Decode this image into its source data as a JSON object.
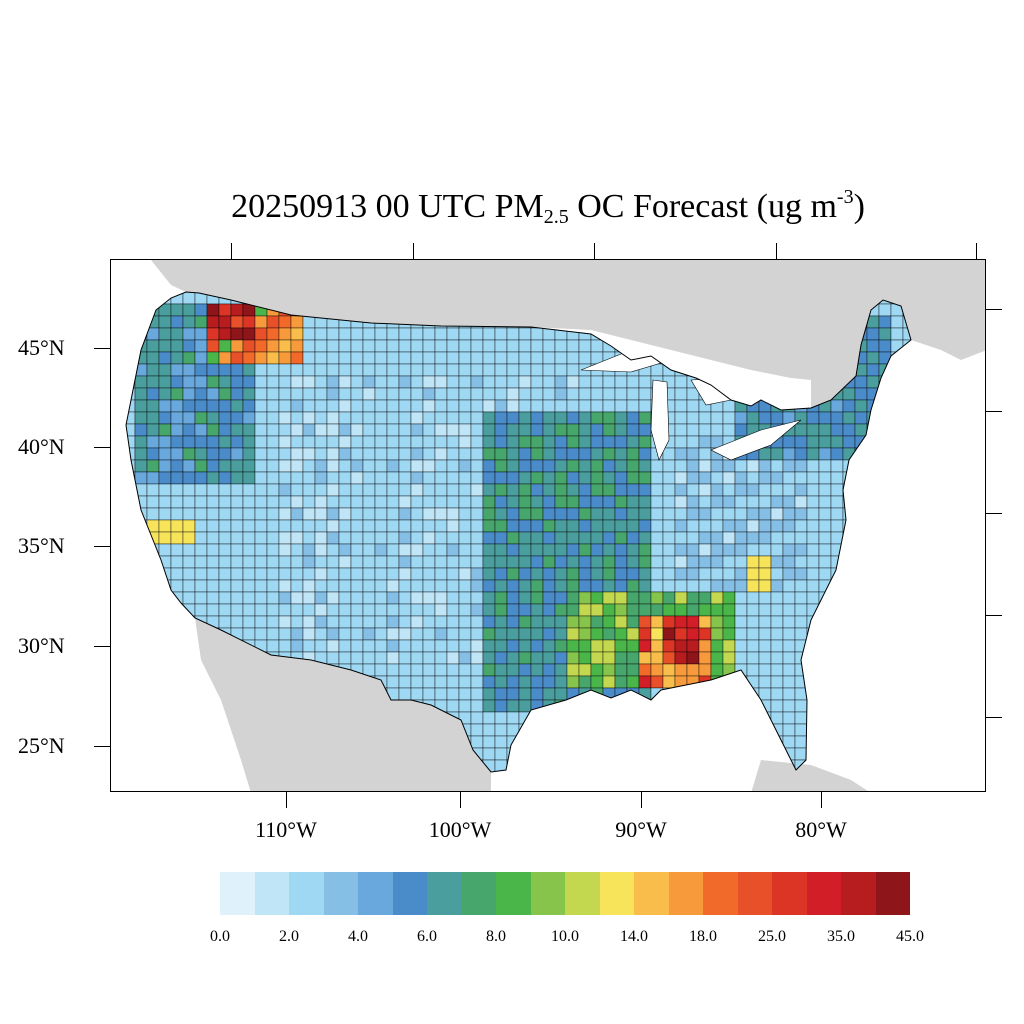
{
  "title": {
    "prefix": "20250913 00 UTC PM",
    "sub": "2.5",
    "middle": " OC Forecast (ug m",
    "sup": "-3",
    "suffix": ")"
  },
  "axes": {
    "latitude_labels": [
      "45°N",
      "40°N",
      "35°N",
      "30°N",
      "25°N"
    ],
    "longitude_labels": [
      "110°W",
      "100°W",
      "90°W",
      "80°W"
    ]
  },
  "colorbar": {
    "colors": [
      "#dff2fb",
      "#bfe5f7",
      "#9ed8f3",
      "#86bfe6",
      "#68a8dc",
      "#4a8bc9",
      "#4a9e9e",
      "#47a66c",
      "#4ab64a",
      "#86c44c",
      "#c3d84f",
      "#f7e45b",
      "#f8bd4a",
      "#f79a3c",
      "#f26a2a",
      "#e8502a",
      "#dc3526",
      "#d21f27",
      "#b71c1f",
      "#8e1519"
    ],
    "labels": [
      "0.0",
      "2.0",
      "4.0",
      "6.0",
      "8.0",
      "10.0",
      "14.0",
      "18.0",
      "25.0",
      "35.0",
      "45.0"
    ]
  },
  "map_colors": {
    "ocean": "#ffffff",
    "land_outside": "#d3d3d3",
    "county_border": "#000000"
  }
}
